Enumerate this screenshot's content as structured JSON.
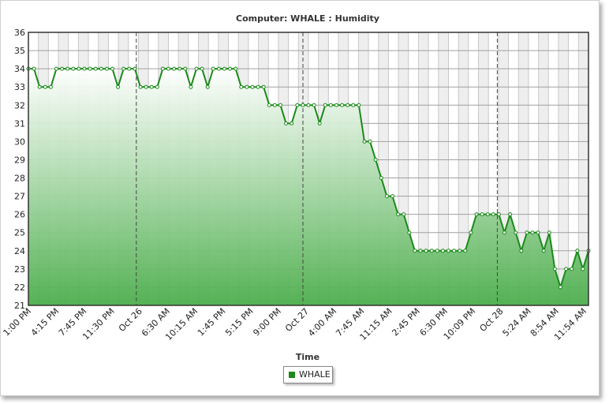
{
  "chart_data": {
    "type": "area",
    "title": "Computer: WHALE : Humidity",
    "xlabel": "Time",
    "ylabel": "",
    "ylim": [
      21,
      36
    ],
    "yticks": [
      21,
      22,
      23,
      24,
      25,
      26,
      27,
      28,
      29,
      30,
      31,
      32,
      33,
      34,
      35,
      36
    ],
    "xtick_labels": [
      "1:00 PM",
      "4:15 PM",
      "7:45 PM",
      "11:30 PM",
      "Oct 26",
      "6:30 AM",
      "10:15 AM",
      "1:45 PM",
      "5:15 PM",
      "9:00 PM",
      "Oct 27",
      "4:00 AM",
      "7:45 AM",
      "11:15 AM",
      "2:45 PM",
      "6:30 PM",
      "10:09 PM",
      "Oct 28",
      "5:24 AM",
      "8:54 AM",
      "11:54 AM"
    ],
    "day_markers": [
      "Oct 26",
      "Oct 27",
      "Oct 28"
    ],
    "grid": true,
    "legend_position": "bottom-center",
    "series": [
      {
        "name": "WHALE",
        "color": "#1a8a1a",
        "values": [
          34,
          34,
          33,
          33,
          33,
          34,
          34,
          34,
          34,
          34,
          34,
          34,
          34,
          34,
          34,
          34,
          33,
          34,
          34,
          34,
          33,
          33,
          33,
          33,
          34,
          34,
          34,
          34,
          34,
          33,
          34,
          34,
          33,
          34,
          34,
          34,
          34,
          34,
          33,
          33,
          33,
          33,
          33,
          32,
          32,
          32,
          31,
          31,
          32,
          32,
          32,
          32,
          31,
          32,
          32,
          32,
          32,
          32,
          32,
          32,
          30,
          30,
          29,
          28,
          27,
          27,
          26,
          26,
          25,
          24,
          24,
          24,
          24,
          24,
          24,
          24,
          24,
          24,
          24,
          25,
          26,
          26,
          26,
          26,
          26,
          25,
          26,
          25,
          24,
          25,
          25,
          25,
          24,
          25,
          23,
          22,
          23,
          23,
          24,
          23,
          24
        ]
      }
    ]
  }
}
